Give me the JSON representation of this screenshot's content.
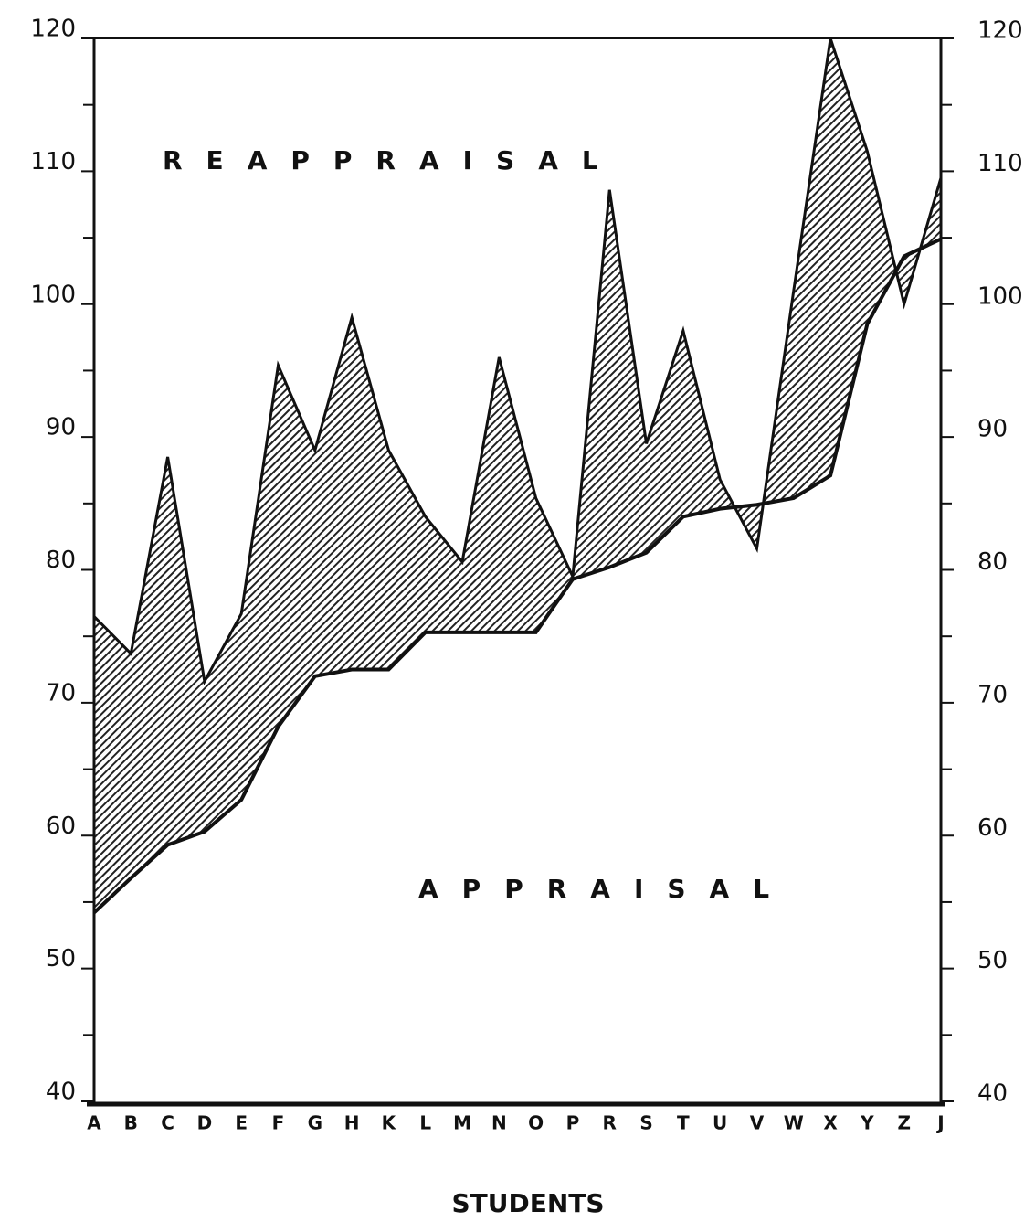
{
  "chart_data": {
    "type": "band",
    "x_label": "STUDENTS",
    "categories": [
      "A",
      "B",
      "C",
      "D",
      "E",
      "F",
      "G",
      "H",
      "K",
      "L",
      "M",
      "N",
      "O",
      "P",
      "R",
      "S",
      "T",
      "U",
      "V",
      "W",
      "X",
      "Y",
      "Z",
      "J"
    ],
    "series": [
      {
        "name": "REAPPRAISAL",
        "color": "#111111",
        "values": [
          76.5,
          73.7,
          88.5,
          71.6,
          76.7,
          95.4,
          89,
          99,
          89,
          84,
          80.6,
          96,
          85.4,
          79.5,
          108.6,
          89.5,
          98,
          86.8,
          81.6,
          101,
          120,
          111.5,
          100,
          109.5
        ]
      },
      {
        "name": "APPRAISAL",
        "color": "#111111",
        "values": [
          54.2,
          56.8,
          59.3,
          60.3,
          62.7,
          68.2,
          72,
          72.5,
          72.5,
          75.3,
          75.3,
          75.3,
          75.3,
          79.3,
          80.2,
          81.3,
          84,
          84.6,
          84.9,
          85.4,
          87.1,
          98.5,
          103.6,
          104.9
        ]
      }
    ],
    "fill_color": "#333333",
    "ylim": [
      40,
      120
    ],
    "yticks": [
      40,
      50,
      60,
      70,
      80,
      90,
      100,
      110,
      120
    ],
    "yminor_ticks": [
      45,
      55,
      65,
      75,
      85,
      95,
      105,
      115
    ]
  }
}
